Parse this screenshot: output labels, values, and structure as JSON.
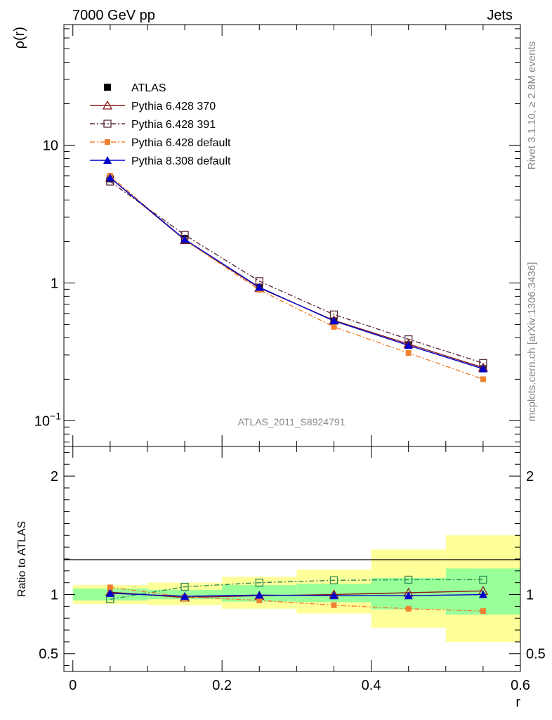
{
  "header": {
    "left": "7000 GeV pp",
    "right": "Jets"
  },
  "side_labels": {
    "rivet": "Rivet 3.1.10, ≥ 2.8M events",
    "mcplots": "mcplots.cern.ch [arXiv:1306.3436]"
  },
  "analysis_id": "ATLAS_2011_S8924791",
  "chart_data": [
    {
      "type": "line",
      "panel": "main",
      "ylabel": "ρ(r)",
      "yscale": "log",
      "ylim": [
        0.065,
        75
      ],
      "xlim": [
        -0.012,
        0.6
      ],
      "y_ticks": [
        {
          "v": 10,
          "base": "10",
          "exp": ""
        },
        {
          "v": 1,
          "base": "1",
          "exp": ""
        },
        {
          "v": 0.1,
          "base": "10",
          "exp": "−1"
        }
      ],
      "legend_position": "top-left",
      "x": [
        0.05,
        0.15,
        0.25,
        0.35,
        0.45,
        0.55
      ],
      "series": [
        {
          "name": "ATLAS",
          "color": "#000000",
          "marker": "square-filled",
          "dash": "none",
          "values": [
            5.7,
            2.1,
            0.93,
            0.53,
            0.355,
            0.238
          ]
        },
        {
          "name": "Pythia 6.428 370",
          "color": "#8b1a1a",
          "marker": "triangle-open",
          "dash": "solid",
          "values": [
            5.8,
            2.05,
            0.92,
            0.535,
            0.36,
            0.243
          ]
        },
        {
          "name": "Pythia 6.428 391",
          "color": "#5a2a3a",
          "marker": "square-open",
          "dash": "dashdot",
          "values": [
            5.45,
            2.23,
            1.03,
            0.59,
            0.39,
            0.262
          ]
        },
        {
          "name": "Pythia 6.428 default",
          "color": "#f08030",
          "marker": "square-filled-small",
          "dash": "dashdot",
          "values": [
            6.0,
            2.05,
            0.89,
            0.48,
            0.31,
            0.2
          ]
        },
        {
          "name": "Pythia 8.308 default",
          "color": "#0000cc",
          "marker": "triangle-filled",
          "dash": "solid",
          "values": [
            5.8,
            2.07,
            0.93,
            0.53,
            0.352,
            0.238
          ]
        }
      ]
    },
    {
      "type": "line",
      "panel": "ratio",
      "xlabel": "r",
      "ylabel": "Ratio to ATLAS",
      "ylim": [
        0.35,
        2.25
      ],
      "xlim": [
        -0.012,
        0.6
      ],
      "x_ticks": [
        "0",
        "0.2",
        "0.4",
        "0.6"
      ],
      "x_tick_values": [
        0,
        0.2,
        0.4,
        0.6
      ],
      "y_ticks": [
        "0.5",
        "1",
        "2"
      ],
      "y_tick_values": [
        0.5,
        1,
        2
      ],
      "bins": [
        [
          0,
          0.1
        ],
        [
          0.1,
          0.2
        ],
        [
          0.2,
          0.3
        ],
        [
          0.3,
          0.4
        ],
        [
          0.4,
          0.5
        ],
        [
          0.5,
          0.6
        ]
      ],
      "band_inner": [
        [
          0.95,
          1.05
        ],
        [
          0.96,
          1.04
        ],
        [
          0.94,
          1.08
        ],
        [
          0.935,
          1.09
        ],
        [
          0.875,
          1.14
        ],
        [
          0.83,
          1.22
        ]
      ],
      "band_outer": [
        [
          0.92,
          1.08
        ],
        [
          0.91,
          1.1
        ],
        [
          0.88,
          1.15
        ],
        [
          0.84,
          1.21
        ],
        [
          0.72,
          1.38
        ],
        [
          0.6,
          1.5
        ]
      ],
      "band_colors": {
        "inner": "#99ff99",
        "outer": "#ffff99"
      },
      "x": [
        0.05,
        0.15,
        0.25,
        0.35,
        0.45,
        0.55
      ],
      "series": [
        {
          "name": "Pythia 6.428 370",
          "color": "#8b1a1a",
          "marker": "triangle-open",
          "dash": "solid",
          "values": [
            1.02,
            0.975,
            0.99,
            1.0,
            1.015,
            1.03
          ]
        },
        {
          "name": "Pythia 6.428 391",
          "color": "#2e8b57",
          "marker": "square-open",
          "dash": "dashdot",
          "values": [
            0.96,
            1.065,
            1.1,
            1.12,
            1.125,
            1.125
          ]
        },
        {
          "name": "Pythia 6.428 default",
          "color": "#f08030",
          "marker": "square-filled-small",
          "dash": "dashdot",
          "values": [
            1.06,
            0.98,
            0.95,
            0.91,
            0.88,
            0.86
          ]
        },
        {
          "name": "Pythia 8.308 default",
          "color": "#0000cc",
          "marker": "triangle-filled",
          "dash": "solid",
          "values": [
            1.01,
            0.985,
            0.995,
            0.99,
            0.99,
            1.0
          ]
        }
      ]
    }
  ]
}
